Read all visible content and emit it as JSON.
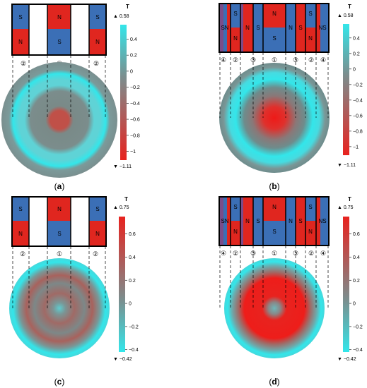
{
  "panels": [
    {
      "letter": "(a)",
      "caption_b": "a",
      "unit": "T",
      "max_label": "0.58",
      "min_label": "−1.11",
      "colormap": "cyan-gray-red",
      "ticks": [
        "0.4",
        "0.2",
        "0",
        "−0.2",
        "−0.4",
        "−0.6",
        "−0.8",
        "−1"
      ],
      "tick_values": [
        0.4,
        0.2,
        0,
        -0.2,
        -0.4,
        -0.6,
        -0.8,
        -1
      ],
      "range": [
        -1.11,
        0.58
      ],
      "circle_labels": [
        "②",
        "①",
        "②"
      ],
      "magnet_labels": [
        "S",
        "N",
        "N",
        "S",
        "S",
        "N"
      ]
    },
    {
      "letter": "(b)",
      "caption_b": "b",
      "unit": "T",
      "max_label": "0.58",
      "min_label": "−1.11",
      "colormap": "cyan-gray-red",
      "ticks": [
        "0.4",
        "0.2",
        "0",
        "−0.2",
        "−0.4",
        "−0.6",
        "−0.8",
        "−1"
      ],
      "tick_values": [
        0.4,
        0.2,
        0,
        -0.2,
        -0.4,
        -0.6,
        -0.8,
        -1
      ],
      "range": [
        -1.11,
        0.58
      ],
      "circle_labels": [
        "④",
        "②",
        "③",
        "①",
        "③",
        "②",
        "④"
      ],
      "magnet_labels": [
        "SN",
        "S",
        "N",
        "N",
        "S",
        "N",
        "S",
        "N",
        "S",
        "S",
        "N",
        "NS"
      ]
    },
    {
      "letter": "(c)",
      "caption_b": "c",
      "unit": "T",
      "max_label": "0.75",
      "min_label": "−0.42",
      "colormap": "red-gray-cyan",
      "ticks": [
        "0.6",
        "0.4",
        "0.2",
        "0",
        "−0.2",
        "−0.4"
      ],
      "tick_values": [
        0.6,
        0.4,
        0.2,
        0,
        -0.2,
        -0.4
      ],
      "range": [
        -0.42,
        0.75
      ],
      "circle_labels": [
        "②",
        "①",
        "②"
      ],
      "magnet_labels": [
        "S",
        "N",
        "N",
        "S",
        "S",
        "N"
      ]
    },
    {
      "letter": "(d)",
      "caption_b": "d",
      "unit": "T",
      "max_label": "0.75",
      "min_label": "−0.42",
      "colormap": "red-gray-cyan",
      "ticks": [
        "0.6",
        "0.4",
        "0.2",
        "0",
        "−0.2",
        "−0.4"
      ],
      "tick_values": [
        0.6,
        0.4,
        0.2,
        0,
        -0.2,
        -0.4
      ],
      "range": [
        -0.42,
        0.75
      ],
      "circle_labels": [
        "④",
        "②",
        "③",
        "①",
        "③",
        "②",
        "④"
      ],
      "magnet_labels": [
        "SN",
        "S",
        "N",
        "N",
        "S",
        "N",
        "S",
        "N",
        "S",
        "S",
        "N",
        "NS"
      ]
    }
  ],
  "colors": {
    "cyan": "#33e6ea",
    "gray": "#6e8c8c",
    "red": "#e8231f",
    "magnet_blue": "#3b6fb6",
    "magnet_red": "#e0261f",
    "magnet_purple": "#7a4c8a"
  }
}
